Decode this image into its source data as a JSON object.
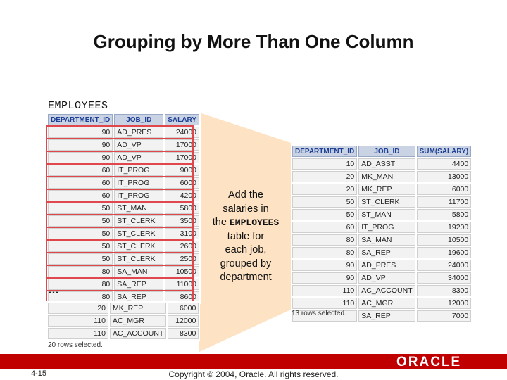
{
  "title": "Grouping by More Than One Column",
  "employees_label": "EMPLOYEES",
  "left_table": {
    "headers": [
      "DEPARTMENT_ID",
      "JOB_ID",
      "SALARY"
    ],
    "rows": [
      [
        "90",
        "AD_PRES",
        "24000"
      ],
      [
        "90",
        "AD_VP",
        "17000"
      ],
      [
        "90",
        "AD_VP",
        "17000"
      ],
      [
        "60",
        "IT_PROG",
        "9000"
      ],
      [
        "60",
        "IT_PROG",
        "6000"
      ],
      [
        "60",
        "IT_PROG",
        "4200"
      ],
      [
        "50",
        "ST_MAN",
        "5800"
      ],
      [
        "50",
        "ST_CLERK",
        "3500"
      ],
      [
        "50",
        "ST_CLERK",
        "3100"
      ],
      [
        "50",
        "ST_CLERK",
        "2600"
      ],
      [
        "50",
        "ST_CLERK",
        "2500"
      ],
      [
        "80",
        "SA_MAN",
        "10500"
      ],
      [
        "80",
        "SA_REP",
        "11000"
      ],
      [
        "80",
        "SA_REP",
        "8600"
      ]
    ],
    "ellipsis": "…",
    "tail_rows": [
      [
        "20",
        "MK_REP",
        "6000"
      ],
      [
        "110",
        "AC_MGR",
        "12000"
      ],
      [
        "110",
        "AC_ACCOUNT",
        "8300"
      ]
    ],
    "rows_selected": "20 rows selected."
  },
  "callout": {
    "line1": "Add the",
    "line2": "salaries in",
    "line3_prefix": "the",
    "line3_table": "EMPLOYEES",
    "line4": "table for",
    "line5": "each job,",
    "line6": "grouped by",
    "line7": "department"
  },
  "right_table": {
    "headers": [
      "DEPARTMENT_ID",
      "JOB_ID",
      "SUM(SALARY)"
    ],
    "rows": [
      [
        "10",
        "AD_ASST",
        "4400"
      ],
      [
        "20",
        "MK_MAN",
        "13000"
      ],
      [
        "20",
        "MK_REP",
        "6000"
      ],
      [
        "50",
        "ST_CLERK",
        "11700"
      ],
      [
        "50",
        "ST_MAN",
        "5800"
      ],
      [
        "60",
        "IT_PROG",
        "19200"
      ],
      [
        "80",
        "SA_MAN",
        "10500"
      ],
      [
        "80",
        "SA_REP",
        "19600"
      ],
      [
        "90",
        "AD_PRES",
        "24000"
      ],
      [
        "90",
        "AD_VP",
        "34000"
      ],
      [
        "110",
        "AC_ACCOUNT",
        "8300"
      ],
      [
        "110",
        "AC_MGR",
        "12000"
      ],
      [
        "",
        "SA_REP",
        "7000"
      ]
    ],
    "rows_selected": "13 rows selected."
  },
  "footer": {
    "slide_number": "4-15",
    "copyright": "Copyright © 2004, Oracle.  All rights reserved.",
    "logo": "ORACLE"
  },
  "colors": {
    "highlight": "#e0474c",
    "callout_fill": "#fde3c4",
    "footer_bar": "#c00000",
    "header_fill": "#c9d3e4"
  }
}
